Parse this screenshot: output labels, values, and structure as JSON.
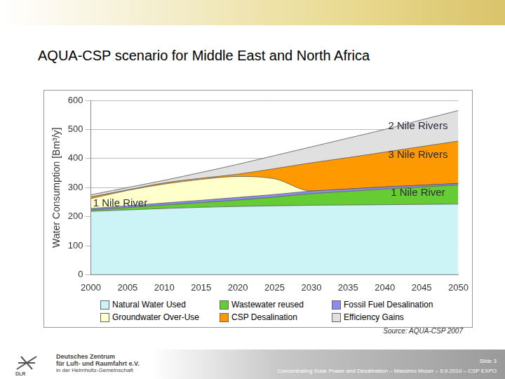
{
  "chart_data": {
    "type": "area",
    "title": "AQUA-CSP scenario for Middle East and North Africa",
    "y_label": "Water Consumption [Bm³/y]",
    "x": [
      2000,
      2005,
      2010,
      2015,
      2020,
      2025,
      2030,
      2035,
      2040,
      2045,
      2050
    ],
    "xlim": [
      2000,
      2050
    ],
    "xticks": [
      2000,
      2005,
      2010,
      2015,
      2020,
      2025,
      2030,
      2035,
      2040,
      2045,
      2050
    ],
    "ylim": [
      0,
      600
    ],
    "yticks": [
      0,
      100,
      200,
      300,
      400,
      500,
      600
    ],
    "stacked": true,
    "grid": true,
    "legend": "bottom",
    "series": [
      {
        "name": "Natural Water Used",
        "color": "#ccf4f6",
        "values": [
          218,
          223,
          228,
          232,
          235,
          237,
          239,
          240,
          241,
          242,
          243
        ]
      },
      {
        "name": "Wastewater reused",
        "color": "#66cc33",
        "values": [
          5,
          8,
          12,
          16,
          22,
          30,
          40,
          47,
          54,
          60,
          66
        ]
      },
      {
        "name": "Fossil Fuel Desalination",
        "color": "#8c8cee",
        "values": [
          5,
          6,
          7,
          8,
          9,
          9,
          9,
          8,
          7,
          6,
          5
        ]
      },
      {
        "name": "Groundwater Over-Use",
        "color": "#ffffcc",
        "values": [
          34,
          53,
          65,
          72,
          72,
          54,
          0,
          0,
          0,
          0,
          0
        ]
      },
      {
        "name": "CSP Desalination",
        "color": "#ff9900",
        "values": [
          6,
          2,
          4,
          4,
          8,
          35,
          97,
          108,
          120,
          133,
          146
        ]
      },
      {
        "name": "Efficiency Gains",
        "color": "#e0e0e0",
        "values": [
          7,
          8,
          9,
          20,
          34,
          45,
          55,
          67,
          78,
          92,
          105
        ]
      }
    ],
    "annotations": [
      {
        "text": "1 Nile River",
        "x": 2004,
        "y": 245
      },
      {
        "text": "1 Nile River",
        "x": 2044.5,
        "y": 281
      },
      {
        "text": "3 Nile Rivers",
        "x": 2044.5,
        "y": 411
      },
      {
        "text": "2 Nile Rivers",
        "x": 2044.5,
        "y": 510
      }
    ],
    "source": "Source: AQUA-CSP 2007"
  },
  "footer": {
    "org_line1": "Deutsches Zentrum",
    "org_line2": "für Luft- und Raumfahrt e.V.",
    "org_line3": "in der Helmholtz-Gemeinschaft",
    "logo": "DLR",
    "slide": "Slide 3",
    "footnote": "Concentrating Solar Power and Desalination – Massimo Moser – 9.9.2010 – CSP EXPO"
  }
}
